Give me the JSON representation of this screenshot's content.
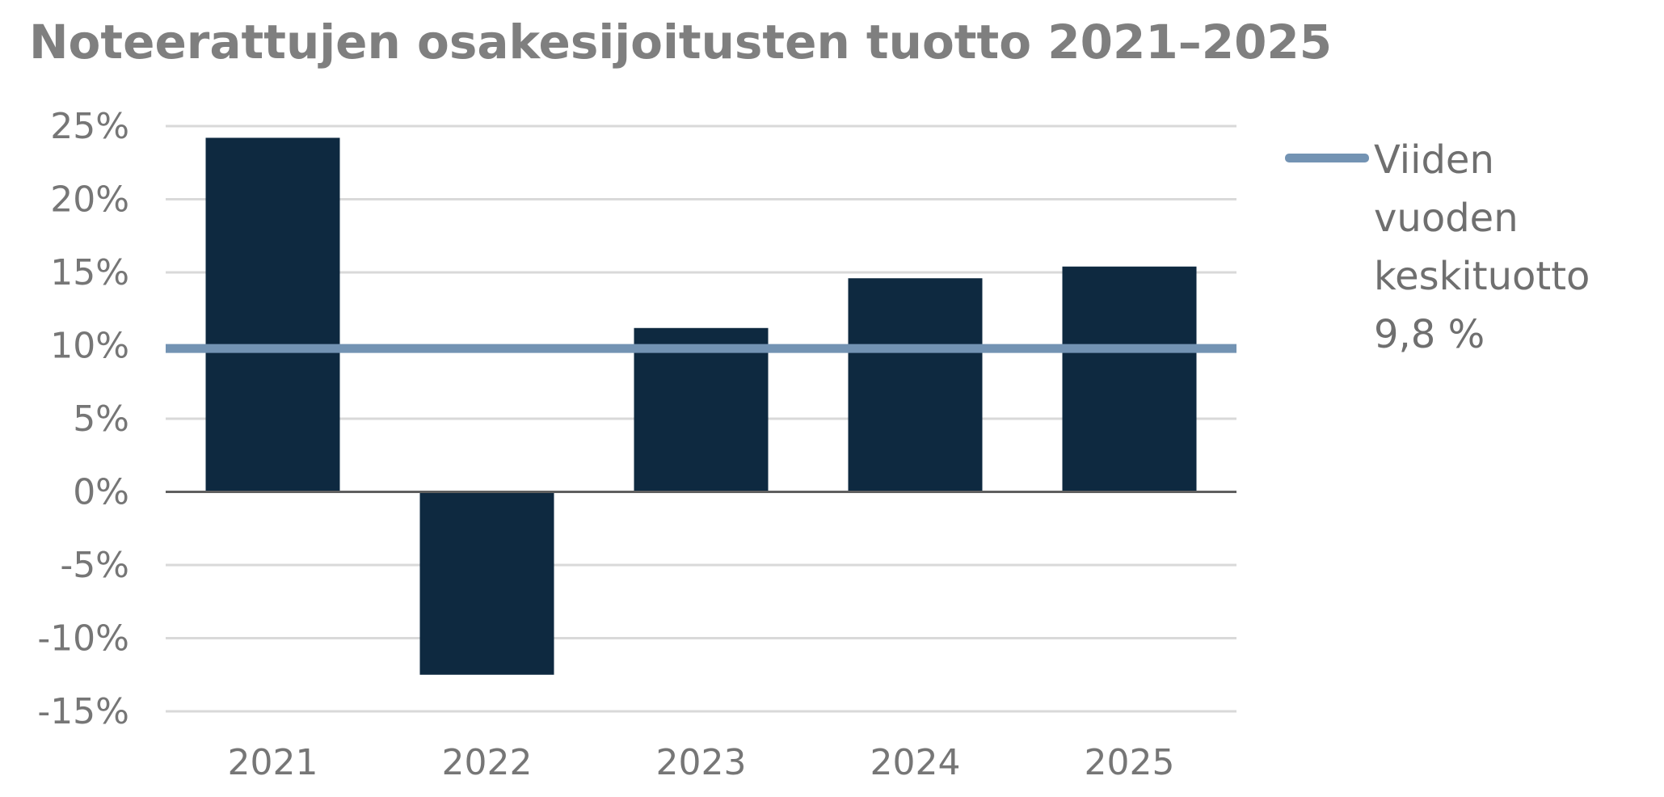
{
  "chart_data": {
    "type": "bar",
    "title": "Noteerattujen osakesijoitusten tuotto 2021–2025",
    "xlabel": "",
    "ylabel": "",
    "categories": [
      "2021",
      "2022",
      "2023",
      "2024",
      "2025"
    ],
    "values": [
      24.2,
      -12.5,
      11.2,
      14.6,
      15.4
    ],
    "ylim": [
      -15,
      25
    ],
    "yticks": [
      25,
      20,
      15,
      10,
      5,
      0,
      -5,
      -10,
      -15
    ],
    "ytick_labels": [
      "25%",
      "20%",
      "15%",
      "10%",
      "5%",
      "0%",
      "-5%",
      "-10%",
      "-15%"
    ],
    "grid": true,
    "bar_color": "#0e2940",
    "reference_line": {
      "value": 9.8,
      "label": "Viiden vuoden keskituotto 9,8 %",
      "color": "#7393b3"
    },
    "legend_position": "right"
  }
}
